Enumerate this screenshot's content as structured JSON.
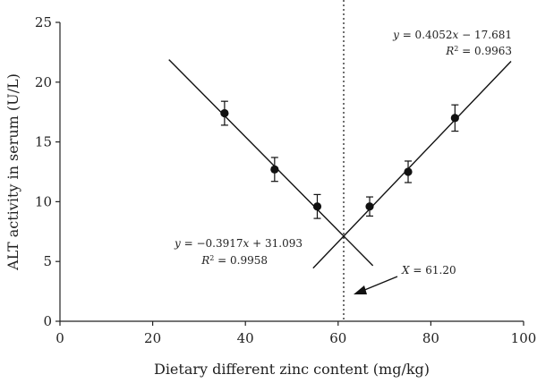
{
  "chart_data": {
    "type": "scatter",
    "xlabel": "Dietary different zinc content (mg/kg)",
    "ylabel": "ALT activity in serum (U/L)",
    "xlim": [
      0,
      100
    ],
    "ylim": [
      0,
      25
    ],
    "x_ticks": [
      "0",
      "20",
      "40",
      "60",
      "80",
      "100"
    ],
    "y_ticks": [
      "0",
      "5",
      "10",
      "15",
      "20",
      "25"
    ],
    "grid": false,
    "points": [
      {
        "x": 35.5,
        "y": 17.4,
        "err": 1.0
      },
      {
        "x": 46.3,
        "y": 12.7,
        "err": 1.0
      },
      {
        "x": 55.5,
        "y": 9.6,
        "err": 1.0
      },
      {
        "x": 66.8,
        "y": 9.6,
        "err": 0.8
      },
      {
        "x": 75.1,
        "y": 12.5,
        "err": 0.9
      },
      {
        "x": 85.2,
        "y": 17.0,
        "err": 1.1
      }
    ],
    "fits": [
      {
        "slope": -0.3917,
        "intercept": 31.093,
        "x_range": [
          23.5,
          67.5
        ],
        "eq_pre": "y",
        "eq_mid": " = −0.3917",
        "eq_var": "x",
        "eq_post": " + 31.093",
        "r2_pre": "R",
        "r2_sup": "2",
        "r2_post": " = 0.9958"
      },
      {
        "slope": 0.4052,
        "intercept": -17.681,
        "x_range": [
          54.6,
          97.3
        ],
        "eq_pre": "y",
        "eq_mid": " = 0.4052",
        "eq_var": "x",
        "eq_post": " − 17.681",
        "r2_pre": "R",
        "r2_sup": "2",
        "r2_post": " = 0.9963"
      }
    ],
    "breakpoint": {
      "x": 61.2,
      "label_pre": "X",
      "label_post": " = 61.20"
    }
  }
}
